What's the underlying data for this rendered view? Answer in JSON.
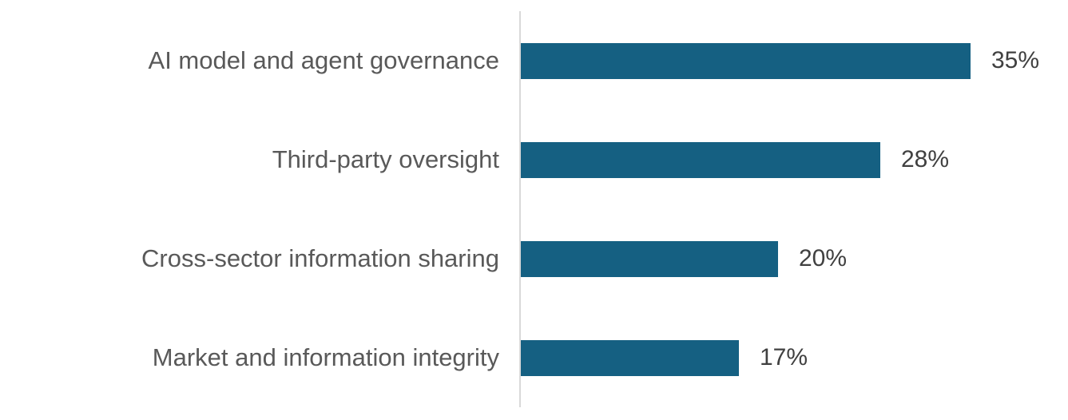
{
  "chart_data": {
    "type": "bar",
    "orientation": "horizontal",
    "title": "",
    "xlabel": "",
    "ylabel": "",
    "categories": [
      "AI model and agent governance",
      "Third-party oversight",
      "Cross-sector information sharing",
      "Market and information integrity"
    ],
    "values": [
      35,
      28,
      20,
      17
    ],
    "value_labels": [
      "35%",
      "28%",
      "20%",
      "17%"
    ],
    "unit": "percent",
    "xlim": [
      0,
      35
    ],
    "grid": false,
    "legend": false,
    "axis_line": "vertical-left",
    "colors": {
      "bar": "#156082",
      "category_label": "#595959",
      "value_label": "#404040",
      "axis_line": "#D9D9D9",
      "background": "#FFFFFF"
    }
  }
}
